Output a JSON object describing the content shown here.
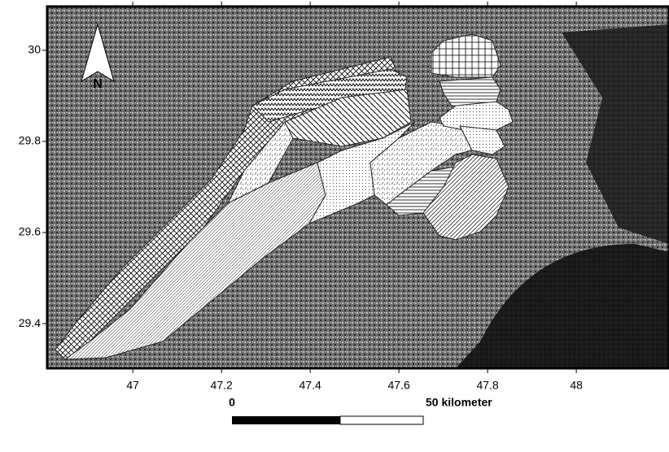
{
  "map": {
    "north_arrow": "N",
    "xlim": [
      46.807,
      48.209
    ],
    "ylim": [
      29.302,
      30.096
    ],
    "xticks": [
      47,
      47.2,
      47.4,
      47.6,
      47.8,
      48
    ],
    "yticks": [
      29.4,
      29.6,
      29.8,
      30
    ],
    "scale_bar": {
      "start": 0,
      "end": "50 kilometer"
    }
  }
}
